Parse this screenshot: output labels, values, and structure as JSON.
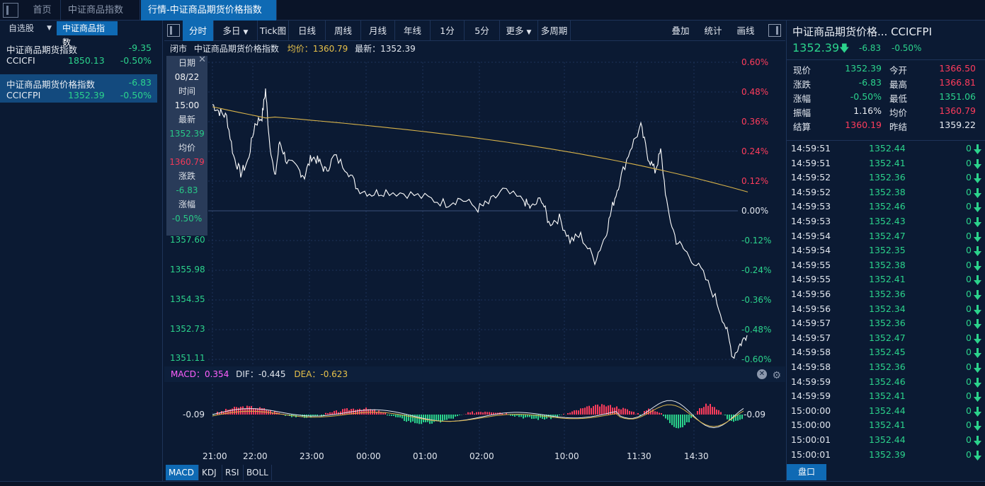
{
  "tabs": [
    {
      "label": "首页"
    },
    {
      "label": "中证商品指数"
    },
    {
      "label": "行情-中证商品期货价格指数",
      "close": "✕"
    }
  ],
  "left": {
    "self_label": "自选股",
    "index_label": "中证商品指数",
    "rows": [
      {
        "name": "中证商品期货指数",
        "change": "-9.35",
        "code": "CCICFI",
        "price": "1850.13",
        "pct": "-0.50%"
      },
      {
        "name": "中证商品期货价格指数",
        "change": "-6.83",
        "code": "CCICFPI",
        "price": "1352.39",
        "pct": "-0.50%"
      }
    ]
  },
  "toolbar": {
    "buttons": [
      "分时",
      "多日",
      "Tick图",
      "日线",
      "周线",
      "月线",
      "年线",
      "1分",
      "5分",
      "更多",
      "多周期"
    ],
    "right": [
      "叠加",
      "统计",
      "画线"
    ]
  },
  "info": {
    "status": "闭市",
    "name": "中证商品期货价格指数",
    "avg": "均价：1360.79",
    "latest": "最新：1352.39"
  },
  "tooltip": {
    "date_label": "日期",
    "date": "08/22",
    "time_label": "时间",
    "time": "15:00",
    "latest_label": "最新",
    "latest": "1352.39",
    "avg_label": "均价",
    "avg": "1360.79",
    "chg_label": "涨跌",
    "chg": "-6.83",
    "pct_label": "涨幅",
    "pct": "-0.50%",
    "close": "✕"
  },
  "chart_data": {
    "type": "line",
    "series": [
      {
        "name": "最新"
      },
      {
        "name": "均价"
      }
    ],
    "x_ticks": [
      "21:00",
      "22:00",
      "23:00",
      "00:00",
      "01:00",
      "02:00",
      "10:00",
      "11:30",
      "14:30"
    ],
    "y_ticks_left": [
      "1357.60",
      "1355.98",
      "1354.35",
      "1352.73",
      "1351.11"
    ],
    "y_ticks_right": [
      "0.60%",
      "0.48%",
      "0.36%",
      "0.24%",
      "0.12%",
      "0.00%",
      "-0.12%",
      "-0.24%",
      "-0.36%",
      "-0.48%",
      "-0.60%"
    ],
    "prev_close": 1359.22,
    "last": 1352.39,
    "avg": 1360.79,
    "colors": {
      "price": "#ffffff",
      "avg": "#d8b34a",
      "up": "#ff3c5c",
      "down": "#2bd38c",
      "grid": "#1d3358"
    }
  },
  "macd": {
    "macd_label": "MACD：0.354",
    "dif_label": "DIF：-0.445",
    "dea_label": "DEA：-0.623",
    "axis_left": "-0.09",
    "axis_right": "-0.09"
  },
  "indicator_tabs": [
    "MACD",
    "KDJ",
    "RSI",
    "BOLL"
  ],
  "right": {
    "title": "中证商品期货价格...  CCICFPI",
    "price": "1352.39",
    "change": "-6.83",
    "pct": "-0.50%",
    "quote": [
      {
        "a": "现价",
        "av": "1352.39",
        "ac": "g",
        "b": "今开",
        "bv": "1366.50",
        "bc": "r"
      },
      {
        "a": "涨跌",
        "av": "-6.83",
        "ac": "g",
        "b": "最高",
        "bv": "1366.81",
        "bc": "r"
      },
      {
        "a": "涨幅",
        "av": "-0.50%",
        "ac": "g",
        "b": "最低",
        "bv": "1351.06",
        "bc": "g"
      },
      {
        "a": "振幅",
        "av": "1.16%",
        "ac": "w",
        "b": "均价",
        "bv": "1360.79",
        "bc": "r"
      },
      {
        "a": "结算",
        "av": "1360.19",
        "ac": "r",
        "b": "昨结",
        "bv": "1359.22",
        "bc": "w"
      }
    ],
    "ticks": [
      {
        "t": "14:59:51",
        "p": "1352.44",
        "v": "0"
      },
      {
        "t": "14:59:51",
        "p": "1352.41",
        "v": "0"
      },
      {
        "t": "14:59:52",
        "p": "1352.36",
        "v": "0"
      },
      {
        "t": "14:59:52",
        "p": "1352.38",
        "v": "0"
      },
      {
        "t": "14:59:53",
        "p": "1352.46",
        "v": "0"
      },
      {
        "t": "14:59:53",
        "p": "1352.43",
        "v": "0"
      },
      {
        "t": "14:59:54",
        "p": "1352.47",
        "v": "0"
      },
      {
        "t": "14:59:54",
        "p": "1352.35",
        "v": "0"
      },
      {
        "t": "14:59:55",
        "p": "1352.38",
        "v": "0"
      },
      {
        "t": "14:59:55",
        "p": "1352.41",
        "v": "0"
      },
      {
        "t": "14:59:56",
        "p": "1352.36",
        "v": "0"
      },
      {
        "t": "14:59:56",
        "p": "1352.34",
        "v": "0"
      },
      {
        "t": "14:59:57",
        "p": "1352.36",
        "v": "0"
      },
      {
        "t": "14:59:57",
        "p": "1352.47",
        "v": "0"
      },
      {
        "t": "14:59:58",
        "p": "1352.45",
        "v": "0"
      },
      {
        "t": "14:59:58",
        "p": "1352.36",
        "v": "0"
      },
      {
        "t": "14:59:59",
        "p": "1352.46",
        "v": "0"
      },
      {
        "t": "14:59:59",
        "p": "1352.41",
        "v": "0"
      },
      {
        "t": "15:00:00",
        "p": "1352.44",
        "v": "0"
      },
      {
        "t": "15:00:00",
        "p": "1352.41",
        "v": "0"
      },
      {
        "t": "15:00:01",
        "p": "1352.44",
        "v": "0"
      },
      {
        "t": "15:00:01",
        "p": "1352.39",
        "v": "0"
      }
    ],
    "pan_label": "盘口"
  }
}
